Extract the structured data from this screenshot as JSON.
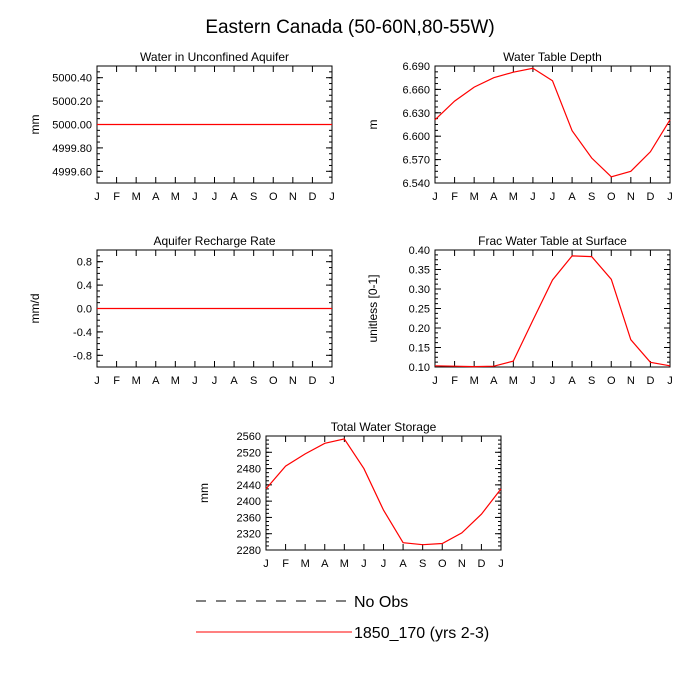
{
  "title": "Eastern Canada (50-60N,80-55W)",
  "line_color": "#ff0000",
  "months": [
    "J",
    "F",
    "M",
    "A",
    "M",
    "J",
    "J",
    "A",
    "S",
    "O",
    "N",
    "D",
    "J"
  ],
  "legend": {
    "obs_label": "No Obs",
    "model_label": "1850_170 (yrs 2-3)"
  },
  "chart_data": [
    {
      "type": "line",
      "title": "Water in Unconfined Aquifer",
      "ylabel": "mm",
      "ylim": [
        4999.5,
        5000.5
      ],
      "yticks": [
        4999.6,
        4999.8,
        5000.0,
        5000.2,
        5000.4
      ],
      "ytick_labels": [
        "4999.60",
        "4999.80",
        "5000.00",
        "5000.20",
        "5000.40"
      ],
      "grid": false,
      "series": [
        {
          "name": "1850_170 (yrs 2-3)",
          "values": [
            5000.0,
            5000.0,
            5000.0,
            5000.0,
            5000.0,
            5000.0,
            5000.0,
            5000.0,
            5000.0,
            5000.0,
            5000.0,
            5000.0,
            5000.0
          ]
        }
      ]
    },
    {
      "type": "line",
      "title": "Water Table Depth",
      "ylabel": "m",
      "ylim": [
        6.54,
        6.69
      ],
      "yticks": [
        6.54,
        6.57,
        6.6,
        6.63,
        6.66,
        6.69
      ],
      "ytick_labels": [
        "6.540",
        "6.570",
        "6.600",
        "6.630",
        "6.660",
        "6.690"
      ],
      "grid": false,
      "series": [
        {
          "name": "1850_170 (yrs 2-3)",
          "values": [
            6.621,
            6.645,
            6.663,
            6.675,
            6.682,
            6.687,
            6.671,
            6.607,
            6.572,
            6.548,
            6.555,
            6.58,
            6.621
          ]
        }
      ]
    },
    {
      "type": "line",
      "title": "Aquifer Recharge Rate",
      "ylabel": "mm/d",
      "ylim": [
        -1.0,
        1.0
      ],
      "yticks": [
        -0.8,
        -0.4,
        0.0,
        0.4,
        0.8
      ],
      "ytick_labels": [
        "-0.8",
        "-0.4",
        "0.0",
        "0.4",
        "0.8"
      ],
      "grid": false,
      "series": [
        {
          "name": "1850_170 (yrs 2-3)",
          "values": [
            0,
            0,
            0,
            0,
            0,
            0,
            0,
            0,
            0,
            0,
            0,
            0,
            0
          ]
        }
      ]
    },
    {
      "type": "line",
      "title": "Frac Water Table at Surface",
      "ylabel": "unitless [0-1]",
      "ylim": [
        0.1,
        0.4
      ],
      "yticks": [
        0.1,
        0.15,
        0.2,
        0.25,
        0.3,
        0.35,
        0.4
      ],
      "ytick_labels": [
        "0.10",
        "0.15",
        "0.20",
        "0.25",
        "0.30",
        "0.35",
        "0.40"
      ],
      "grid": false,
      "series": [
        {
          "name": "1850_170 (yrs 2-3)",
          "values": [
            0.103,
            0.102,
            0.101,
            0.102,
            0.115,
            0.22,
            0.323,
            0.385,
            0.383,
            0.325,
            0.17,
            0.112,
            0.103
          ]
        }
      ]
    },
    {
      "type": "line",
      "title": "Total Water Storage",
      "ylabel": "mm",
      "ylim": [
        2280,
        2560
      ],
      "yticks": [
        2280,
        2320,
        2360,
        2400,
        2440,
        2480,
        2520,
        2560
      ],
      "ytick_labels": [
        "2280",
        "2320",
        "2360",
        "2400",
        "2440",
        "2480",
        "2520",
        "2560"
      ],
      "grid": false,
      "series": [
        {
          "name": "1850_170 (yrs 2-3)",
          "values": [
            2430,
            2486,
            2516,
            2542,
            2553,
            2480,
            2378,
            2298,
            2293,
            2296,
            2322,
            2368,
            2430
          ]
        }
      ]
    }
  ]
}
